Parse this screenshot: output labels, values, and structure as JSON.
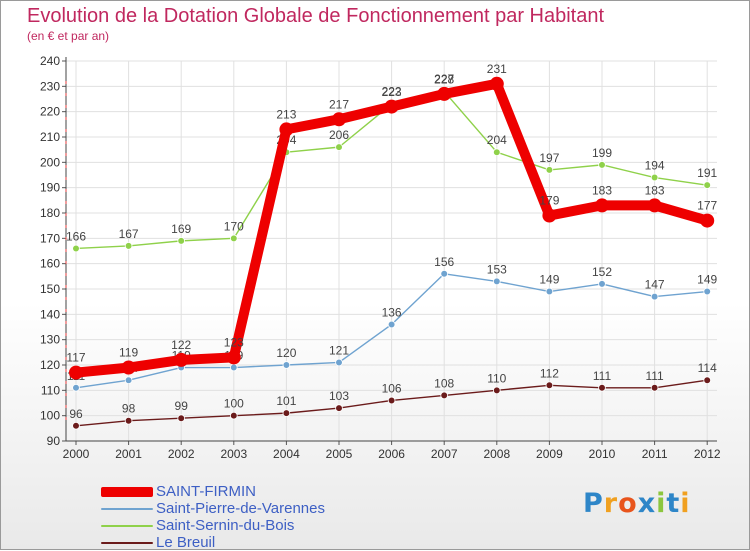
{
  "page": {
    "title": "Evolution de la Dotation Globale de Fonctionnement par Habitant",
    "subtitle": "(en € et par an)",
    "brand": "Proxiti",
    "brand_letters": [
      {
        "char": "P",
        "color": "#2e86c8"
      },
      {
        "char": "r",
        "color": "#f0a020"
      },
      {
        "char": "o",
        "color": "#e8541c"
      },
      {
        "char": "x",
        "color": "#2e86c8"
      },
      {
        "char": "i",
        "color": "#8cc63e"
      },
      {
        "char": "t",
        "color": "#2e86c8"
      },
      {
        "char": "i",
        "color": "#f0a020"
      }
    ]
  },
  "chart_data": {
    "type": "line",
    "title": "Evolution de la Dotation Globale de Fonctionnement par Habitant",
    "subtitle": "(en € et par an)",
    "xlabel": "",
    "ylabel": "",
    "ylim": [
      90,
      240
    ],
    "yticks": [
      90,
      100,
      110,
      120,
      130,
      140,
      150,
      160,
      170,
      180,
      190,
      200,
      210,
      220,
      230,
      240
    ],
    "grid": true,
    "legend_position": "bottom-left",
    "categories": [
      "2000",
      "2001",
      "2002",
      "2003",
      "2004",
      "2005",
      "2006",
      "2007",
      "2008",
      "2009",
      "2010",
      "2011",
      "2012"
    ],
    "series": [
      {
        "name": "Le Breuil",
        "color": "#6b1b1b",
        "emphasis": false,
        "values": [
          96,
          98,
          99,
          100,
          101,
          103,
          106,
          108,
          110,
          112,
          111,
          111,
          114
        ]
      },
      {
        "name": "Saint-Pierre-de-Varennes",
        "color": "#6fa3d0",
        "emphasis": false,
        "values": [
          111,
          114,
          119,
          119,
          120,
          121,
          136,
          156,
          153,
          149,
          152,
          147,
          149
        ]
      },
      {
        "name": "Saint-Sernin-du-Bois",
        "color": "#8fd14a",
        "emphasis": false,
        "values": [
          166,
          167,
          169,
          170,
          204,
          206,
          223,
          228,
          204,
          197,
          199,
          194,
          191
        ]
      },
      {
        "name": "SAINT-FIRMIN",
        "color": "#ee0000",
        "emphasis": true,
        "values": [
          117,
          119,
          122,
          123,
          213,
          217,
          222,
          227,
          231,
          179,
          183,
          183,
          177
        ]
      }
    ],
    "legend": [
      {
        "name": "SAINT-FIRMIN",
        "color": "#ee0000",
        "emphasis": true
      },
      {
        "name": "Saint-Pierre-de-Varennes",
        "color": "#6fa3d0",
        "emphasis": false
      },
      {
        "name": "Saint-Sernin-du-Bois",
        "color": "#8fd14a",
        "emphasis": false
      },
      {
        "name": "Le Breuil",
        "color": "#6b1b1b",
        "emphasis": false
      }
    ]
  }
}
